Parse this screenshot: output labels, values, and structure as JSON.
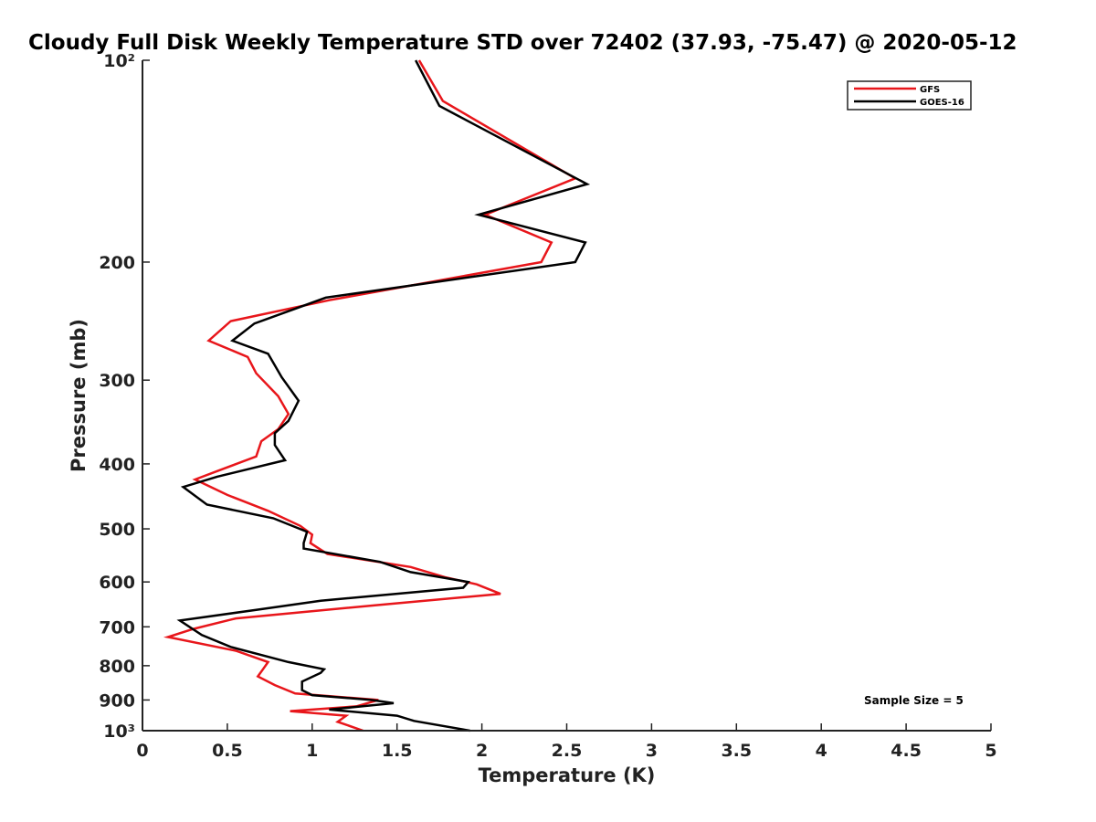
{
  "chart_data": {
    "type": "line",
    "title": "Cloudy Full Disk Weekly Temperature STD over 72402 (37.93, -75.47) @ 2020-05-12",
    "xlabel": "Temperature (K)",
    "ylabel": "Pressure (mb)",
    "xlim": [
      0,
      5
    ],
    "ylim": [
      100,
      1000
    ],
    "y_scale": "log",
    "y_reversed": true,
    "x_ticks": [
      0,
      0.5,
      1,
      1.5,
      2,
      2.5,
      3,
      3.5,
      4,
      4.5,
      5
    ],
    "x_tick_labels": [
      "0",
      "0.5",
      "1",
      "1.5",
      "2",
      "2.5",
      "3",
      "3.5",
      "4",
      "4.5",
      "5"
    ],
    "y_ticks": [
      100,
      200,
      300,
      400,
      500,
      600,
      700,
      800,
      900,
      1000
    ],
    "y_tick_labels": [
      "10²",
      "200",
      "300",
      "400",
      "500",
      "600",
      "700",
      "800",
      "900",
      "10³"
    ],
    "grid": false,
    "legend_position": "top-right",
    "annotation": "Sample Size = 5",
    "series": [
      {
        "name": "GFS",
        "color": "#e8161b",
        "points": [
          [
            1.63,
            100
          ],
          [
            1.77,
            115
          ],
          [
            2.55,
            150
          ],
          [
            2.02,
            170
          ],
          [
            2.41,
            187
          ],
          [
            2.35,
            200
          ],
          [
            1.1,
            228
          ],
          [
            0.52,
            245
          ],
          [
            0.39,
            262
          ],
          [
            0.62,
            277
          ],
          [
            0.67,
            293
          ],
          [
            0.8,
            317
          ],
          [
            0.86,
            337
          ],
          [
            0.8,
            355
          ],
          [
            0.7,
            370
          ],
          [
            0.67,
            390
          ],
          [
            0.44,
            410
          ],
          [
            0.31,
            422
          ],
          [
            0.5,
            445
          ],
          [
            0.74,
            470
          ],
          [
            0.93,
            495
          ],
          [
            1.0,
            510
          ],
          [
            0.99,
            525
          ],
          [
            1.09,
            545
          ],
          [
            1.58,
            570
          ],
          [
            1.78,
            590
          ],
          [
            1.97,
            605
          ],
          [
            2.11,
            625
          ],
          [
            1.37,
            650
          ],
          [
            0.55,
            680
          ],
          [
            0.3,
            705
          ],
          [
            0.15,
            725
          ],
          [
            0.55,
            760
          ],
          [
            0.74,
            790
          ],
          [
            0.71,
            810
          ],
          [
            0.68,
            830
          ],
          [
            0.78,
            855
          ],
          [
            0.9,
            880
          ],
          [
            1.39,
            900
          ],
          [
            1.26,
            920
          ],
          [
            0.87,
            935
          ],
          [
            1.2,
            950
          ],
          [
            1.15,
            970
          ],
          [
            1.3,
            1000
          ]
        ]
      },
      {
        "name": "GOES-16",
        "color": "#000000",
        "points": [
          [
            1.61,
            100
          ],
          [
            1.75,
            117
          ],
          [
            2.62,
            153
          ],
          [
            1.98,
            170
          ],
          [
            2.61,
            187
          ],
          [
            2.55,
            200
          ],
          [
            1.08,
            226
          ],
          [
            0.66,
            247
          ],
          [
            0.53,
            262
          ],
          [
            0.74,
            274
          ],
          [
            0.82,
            297
          ],
          [
            0.92,
            322
          ],
          [
            0.86,
            345
          ],
          [
            0.78,
            360
          ],
          [
            0.78,
            375
          ],
          [
            0.84,
            395
          ],
          [
            0.44,
            418
          ],
          [
            0.24,
            433
          ],
          [
            0.38,
            460
          ],
          [
            0.77,
            482
          ],
          [
            0.97,
            505
          ],
          [
            0.95,
            525
          ],
          [
            0.95,
            535
          ],
          [
            1.4,
            560
          ],
          [
            1.58,
            580
          ],
          [
            1.92,
            600
          ],
          [
            1.89,
            612
          ],
          [
            1.05,
            640
          ],
          [
            0.68,
            660
          ],
          [
            0.22,
            685
          ],
          [
            0.35,
            720
          ],
          [
            0.52,
            750
          ],
          [
            0.86,
            790
          ],
          [
            1.07,
            810
          ],
          [
            1.05,
            820
          ],
          [
            0.94,
            845
          ],
          [
            0.94,
            870
          ],
          [
            1.0,
            885
          ],
          [
            1.35,
            900
          ],
          [
            1.48,
            910
          ],
          [
            1.1,
            930
          ],
          [
            1.5,
            950
          ],
          [
            1.6,
            967
          ],
          [
            1.93,
            1000
          ]
        ]
      }
    ]
  }
}
